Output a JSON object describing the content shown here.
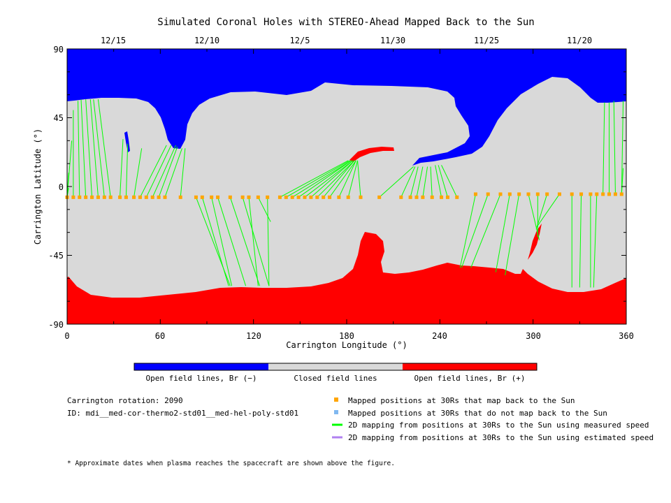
{
  "chart_data": {
    "type": "map",
    "title": "Simulated Coronal Holes with STEREO-Ahead Mapped Back to the Sun",
    "xlabel": "Carrington Longitude (°)",
    "ylabel": "Carrington Latitude (°)",
    "xlim": [
      0,
      360
    ],
    "ylim": [
      -90,
      90
    ],
    "x_ticks": [
      "0",
      "60",
      "120",
      "180",
      "240",
      "300",
      "360"
    ],
    "y_ticks": [
      "90",
      "45",
      "0",
      "-45",
      "-90"
    ],
    "top_dates": [
      {
        "label": "12/15",
        "lon": 30
      },
      {
        "label": "12/10",
        "lon": 90
      },
      {
        "label": "12/5",
        "lon": 150
      },
      {
        "label": "11/30",
        "lon": 210
      },
      {
        "label": "11/25",
        "lon": 270
      },
      {
        "label": "11/20",
        "lon": 330
      }
    ],
    "colorbar": [
      {
        "label": "Open field lines, Br (−)",
        "color": "#0000ff"
      },
      {
        "label": "Closed field lines",
        "color": "#d9d9d9"
      },
      {
        "label": "Open field lines, Br (+)",
        "color": "#ff0000"
      }
    ],
    "info": {
      "rotation_label": "Carrington rotation: 2090",
      "id_label": "ID: mdi__med-cor-thermo2-std01__med-hel-poly-std01"
    },
    "legend": [
      {
        "label": "Mapped positions at 30Rs that map back to the Sun",
        "color": "#ffa500",
        "kind": "square"
      },
      {
        "label": "Mapped positions at 30Rs that do not map back to the Sun",
        "color": "#80b8f0",
        "kind": "square"
      },
      {
        "label": "2D mapping from positions at 30Rs to the Sun using measured speed",
        "color": "#00ff00",
        "kind": "line"
      },
      {
        "label": "2D mapping from positions at 30Rs to the Sun using estimated speed",
        "color": "#b080f0",
        "kind": "line"
      }
    ],
    "footnote": "* Approximate dates when plasma reaches the spacecraft are shown above the figure.",
    "colors": {
      "closed": "#d9d9d9",
      "open_negative": "#0000ff",
      "open_positive": "#ff0000",
      "mapped": "#ffa500",
      "mapping_line": "#00ff00"
    },
    "mapped_points": [
      {
        "lon": 0,
        "lat": -7,
        "to": [
          [
            1,
            -1
          ],
          [
            1,
            9
          ],
          [
            3,
            30
          ]
        ]
      },
      {
        "lon": 4,
        "lat": -7,
        "to": [
          [
            4,
            50
          ]
        ]
      },
      {
        "lon": 8,
        "lat": -7,
        "to": [
          [
            7,
            56
          ]
        ]
      },
      {
        "lon": 12,
        "lat": -7,
        "to": [
          [
            9,
            57
          ]
        ]
      },
      {
        "lon": 16,
        "lat": -7,
        "to": [
          [
            12,
            57
          ]
        ]
      },
      {
        "lon": 20,
        "lat": -7,
        "to": [
          [
            15,
            57
          ]
        ]
      },
      {
        "lon": 24,
        "lat": -7,
        "to": [
          [
            17,
            57
          ]
        ]
      },
      {
        "lon": 28,
        "lat": -7,
        "to": [
          [
            20,
            57
          ]
        ]
      },
      {
        "lon": 34,
        "lat": -7,
        "to": [
          [
            36,
            31
          ]
        ]
      },
      {
        "lon": 38,
        "lat": -7,
        "to": [
          [
            39,
            28
          ]
        ]
      },
      {
        "lon": 43,
        "lat": -7,
        "to": [
          [
            48,
            25
          ]
        ]
      },
      {
        "lon": 47,
        "lat": -7,
        "to": [
          [
            64,
            27
          ]
        ]
      },
      {
        "lon": 51,
        "lat": -7,
        "to": [
          [
            67,
            27
          ]
        ]
      },
      {
        "lon": 55,
        "lat": -7,
        "to": [
          [
            70,
            27
          ]
        ]
      },
      {
        "lon": 59,
        "lat": -7,
        "to": [
          [
            71,
            26
          ]
        ]
      },
      {
        "lon": 63,
        "lat": -7,
        "to": [
          [
            74,
            25
          ]
        ]
      },
      {
        "lon": 73,
        "lat": -7,
        "to": [
          [
            76,
            25
          ]
        ]
      },
      {
        "lon": 83,
        "lat": -7,
        "to": [
          [
            105,
            -65
          ]
        ]
      },
      {
        "lon": 87,
        "lat": -7,
        "to": [
          [
            104,
            -65
          ]
        ]
      },
      {
        "lon": 93,
        "lat": -7,
        "to": [
          [
            106,
            -65
          ]
        ]
      },
      {
        "lon": 97,
        "lat": -7,
        "to": [
          [
            115,
            -65
          ]
        ]
      },
      {
        "lon": 105,
        "lat": -7,
        "to": [
          [
            124,
            -65
          ]
        ]
      },
      {
        "lon": 113,
        "lat": -7,
        "to": [
          [
            130,
            -65
          ]
        ]
      },
      {
        "lon": 117,
        "lat": -7,
        "to": [
          [
            123,
            -65
          ]
        ]
      },
      {
        "lon": 123,
        "lat": -7,
        "to": [
          [
            131,
            -23
          ]
        ]
      },
      {
        "lon": 129,
        "lat": -7,
        "to": [
          [
            130,
            -65
          ]
        ]
      },
      {
        "lon": 137,
        "lat": -7,
        "to": [
          [
            181,
            17
          ]
        ]
      },
      {
        "lon": 141,
        "lat": -7,
        "to": [
          [
            182,
            17
          ]
        ]
      },
      {
        "lon": 145,
        "lat": -7,
        "to": [
          [
            183,
            17
          ]
        ]
      },
      {
        "lon": 149,
        "lat": -7,
        "to": [
          [
            183,
            17
          ]
        ]
      },
      {
        "lon": 153,
        "lat": -7,
        "to": [
          [
            184,
            17
          ]
        ]
      },
      {
        "lon": 157,
        "lat": -7,
        "to": [
          [
            184,
            17
          ]
        ]
      },
      {
        "lon": 161,
        "lat": -7,
        "to": [
          [
            185,
            17
          ]
        ]
      },
      {
        "lon": 165,
        "lat": -7,
        "to": [
          [
            185,
            17
          ]
        ]
      },
      {
        "lon": 169,
        "lat": -7,
        "to": [
          [
            186,
            17
          ]
        ]
      },
      {
        "lon": 175,
        "lat": -7,
        "to": [
          [
            186,
            17
          ]
        ]
      },
      {
        "lon": 181,
        "lat": -7,
        "to": [
          [
            187,
            17
          ]
        ]
      },
      {
        "lon": 189,
        "lat": -7,
        "to": [
          [
            187,
            17
          ]
        ]
      },
      {
        "lon": 201,
        "lat": -7,
        "to": [
          [
            223,
            13
          ]
        ]
      },
      {
        "lon": 215,
        "lat": -7,
        "to": [
          [
            224,
            13
          ]
        ]
      },
      {
        "lon": 221,
        "lat": -7,
        "to": [
          [
            226,
            13
          ]
        ]
      },
      {
        "lon": 225,
        "lat": -7,
        "to": [
          [
            229,
            13
          ]
        ]
      },
      {
        "lon": 229,
        "lat": -7,
        "to": [
          [
            232,
            13
          ]
        ]
      },
      {
        "lon": 235,
        "lat": -7,
        "to": [
          [
            234,
            13
          ]
        ]
      },
      {
        "lon": 241,
        "lat": -7,
        "to": [
          [
            237,
            14
          ]
        ]
      },
      {
        "lon": 245,
        "lat": -7,
        "to": [
          [
            239,
            14
          ]
        ]
      },
      {
        "lon": 251,
        "lat": -7,
        "to": [
          [
            241,
            14
          ]
        ]
      },
      {
        "lon": 263,
        "lat": -5,
        "to": [
          [
            253,
            -53
          ]
        ]
      },
      {
        "lon": 271,
        "lat": -5,
        "to": [
          [
            254,
            -53
          ]
        ]
      },
      {
        "lon": 279,
        "lat": -5,
        "to": [
          [
            260,
            -53
          ]
        ]
      },
      {
        "lon": 285,
        "lat": -5,
        "to": [
          [
            276,
            -56
          ]
        ]
      },
      {
        "lon": 291,
        "lat": -5,
        "to": [
          [
            282,
            -58
          ]
        ]
      },
      {
        "lon": 297,
        "lat": -5,
        "to": [
          [
            304,
            -35
          ]
        ]
      },
      {
        "lon": 303,
        "lat": -5,
        "to": [
          [
            303,
            -33
          ]
        ]
      },
      {
        "lon": 309,
        "lat": -5,
        "to": [
          [
            302,
            -28
          ]
        ]
      },
      {
        "lon": 317,
        "lat": -5,
        "to": [
          [
            302,
            -27
          ]
        ]
      },
      {
        "lon": 325,
        "lat": -5,
        "to": [
          [
            325,
            -66
          ]
        ]
      },
      {
        "lon": 331,
        "lat": -5,
        "to": [
          [
            330,
            -66
          ]
        ]
      },
      {
        "lon": 337,
        "lat": -5,
        "to": [
          [
            337,
            -66
          ]
        ]
      },
      {
        "lon": 341,
        "lat": -5,
        "to": [
          [
            339,
            -66
          ]
        ]
      },
      {
        "lon": 345,
        "lat": -5,
        "to": [
          [
            346,
            55
          ]
        ]
      },
      {
        "lon": 349,
        "lat": -5,
        "to": [
          [
            349,
            55
          ]
        ]
      },
      {
        "lon": 353,
        "lat": -5,
        "to": [
          [
            352,
            56
          ]
        ]
      },
      {
        "lon": 357,
        "lat": -5,
        "to": [
          [
            358,
            56
          ],
          [
            358,
            12
          ]
        ]
      }
    ]
  }
}
